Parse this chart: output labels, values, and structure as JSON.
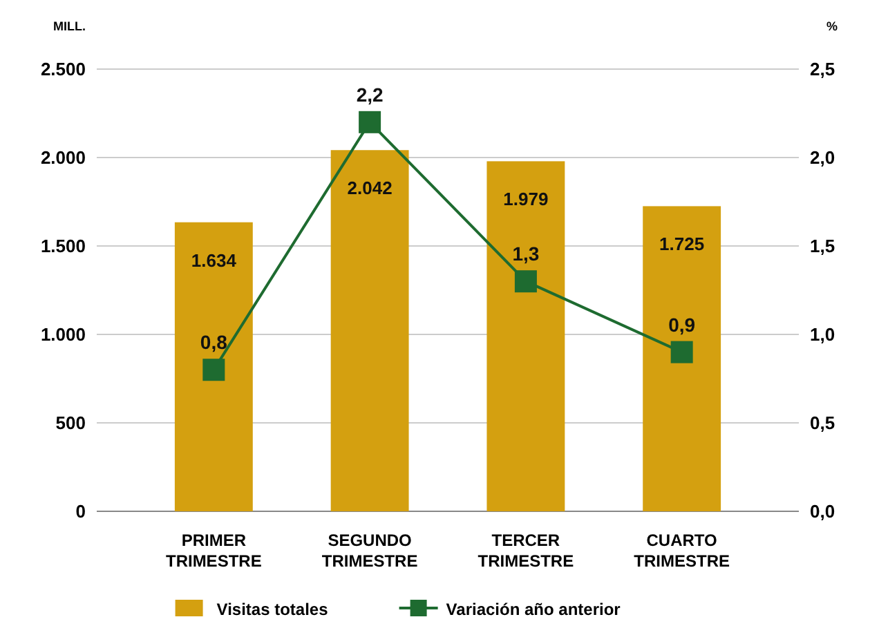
{
  "chart_data": {
    "type": "bar",
    "ylabel": "MILL.",
    "y2label": "%",
    "categories": [
      "PRIMER TRIMESTRE",
      "SEGUNDO TRIMESTRE",
      "TERCER TRIMESTRE",
      "CUARTO TRIMESTRE"
    ],
    "series": [
      {
        "name": "Visitas totales",
        "color": "#d4a010",
        "values": [
          1634,
          2042,
          1979,
          1725
        ],
        "value_labels": [
          "1.634",
          "2.042",
          "1.979",
          "1.725"
        ]
      },
      {
        "name": "Variación año anterior",
        "type": "line",
        "axis": "y2",
        "color": "#1e6b30",
        "marker": "square",
        "values": [
          0.8,
          2.2,
          1.3,
          0.9
        ],
        "value_labels": [
          "0,8",
          "2,2",
          "1,3",
          "0,9"
        ]
      }
    ],
    "ylim": [
      0,
      2500
    ],
    "yticks": [
      0,
      {
        "value": 500,
        "label": "500"
      },
      {
        "value": 1000,
        "label": "1.000"
      },
      {
        "value": 1500,
        "label": "1.500"
      },
      {
        "value": 2000,
        "label": "2.000"
      },
      {
        "value": 2500,
        "label": "2.500"
      }
    ],
    "y2lim": [
      0,
      2.5
    ],
    "y2ticks": [
      {
        "value": 0,
        "label": "0,0"
      },
      {
        "value": 0.5,
        "label": "0,5"
      },
      {
        "value": 1,
        "label": "1,0"
      },
      {
        "value": 1.5,
        "label": "1,5"
      },
      {
        "value": 2,
        "label": "2,0"
      },
      {
        "value": 2.5,
        "label": "2,5"
      }
    ],
    "grid": "y",
    "legend": "bottom"
  }
}
